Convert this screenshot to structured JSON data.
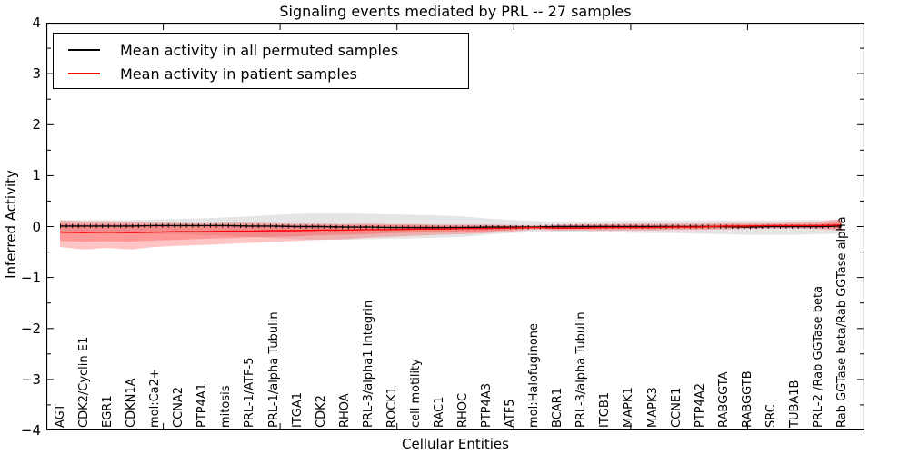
{
  "chart_data": {
    "type": "line",
    "title": "Signaling events mediated by PRL -- 27 samples",
    "xlabel": "Cellular Entities",
    "ylabel": "Inferred Activity",
    "ylim": [
      -4,
      4
    ],
    "xlim": [
      0,
      35
    ],
    "grid": false,
    "legend_position": "upper left",
    "categories": [
      "AGT",
      "CDK2/Cyclin E1",
      "EGR1",
      "CDKN1A",
      "mol:Ca2+",
      "CCNA2",
      "PTP4A1",
      "mitosis",
      "PRL-1/ATF-5",
      "PRL-1/alpha Tubulin",
      "ITGA1",
      "CDK2",
      "RHOA",
      "PRL-3/alpha1 Integrin",
      "ROCK1",
      "cell motility",
      "RAC1",
      "RHOC",
      "PTP4A3",
      "ATF5",
      "mol:Halofuginone",
      "BCAR1",
      "PRL-3/alpha Tubulin",
      "ITGB1",
      "MAPK1",
      "MAPK3",
      "CCNE1",
      "PTP4A2",
      "RABGGTA",
      "RABGGTB",
      "SRC",
      "TUBA1B",
      "PRL-2 /Rab GGTase beta",
      "Rab GGTase beta/Rab GGTase alpha"
    ],
    "series": [
      {
        "name": "Mean activity in all permuted samples",
        "color": "#000000",
        "tick_marks": true,
        "values": [
          0.01,
          0.01,
          0.01,
          0.01,
          0.02,
          0.02,
          0.02,
          0.02,
          0.01,
          0.01,
          0.0,
          0.0,
          -0.01,
          -0.01,
          -0.02,
          -0.02,
          -0.02,
          -0.02,
          -0.01,
          -0.01,
          -0.01,
          0.0,
          0.0,
          0.0,
          0.0,
          0.0,
          0.0,
          0.0,
          0.0,
          -0.01,
          0.0,
          0.0,
          0.0,
          0.01
        ]
      },
      {
        "name": "Mean activity in patient samples",
        "color": "#ff0000",
        "tick_marks": false,
        "values": [
          -0.11,
          -0.12,
          -0.11,
          -0.12,
          -0.11,
          -0.1,
          -0.1,
          -0.09,
          -0.09,
          -0.08,
          -0.08,
          -0.07,
          -0.07,
          -0.06,
          -0.06,
          -0.05,
          -0.05,
          -0.04,
          -0.04,
          -0.03,
          -0.02,
          -0.03,
          -0.03,
          -0.02,
          -0.02,
          -0.02,
          -0.01,
          -0.01,
          0.01,
          0.01,
          0.02,
          0.02,
          0.02,
          0.03
        ]
      }
    ],
    "bands": [
      {
        "name": "permuted-samples-band",
        "fill": "#999999",
        "opacity": 0.25,
        "upper": [
          0.13,
          0.13,
          0.13,
          0.13,
          0.14,
          0.15,
          0.16,
          0.18,
          0.2,
          0.23,
          0.25,
          0.26,
          0.26,
          0.25,
          0.24,
          0.23,
          0.22,
          0.2,
          0.16,
          0.13,
          0.11,
          0.1,
          0.1,
          0.11,
          0.12,
          0.12,
          0.12,
          0.12,
          0.12,
          0.12,
          0.12,
          0.13,
          0.13,
          0.13
        ],
        "lower": [
          -0.13,
          -0.13,
          -0.13,
          -0.13,
          -0.14,
          -0.15,
          -0.16,
          -0.18,
          -0.2,
          -0.23,
          -0.25,
          -0.26,
          -0.26,
          -0.25,
          -0.24,
          -0.23,
          -0.22,
          -0.2,
          -0.16,
          -0.13,
          -0.11,
          -0.1,
          -0.1,
          -0.11,
          -0.12,
          -0.13,
          -0.13,
          -0.14,
          -0.15,
          -0.16,
          -0.16,
          -0.16,
          -0.15,
          -0.14
        ]
      },
      {
        "name": "patient-samples-band-outer",
        "fill": "#ff3030",
        "opacity": 0.28,
        "upper": [
          0.12,
          0.1,
          0.1,
          0.09,
          0.08,
          0.08,
          0.07,
          0.08,
          0.08,
          0.07,
          0.06,
          0.06,
          0.05,
          0.06,
          0.05,
          0.05,
          0.04,
          0.04,
          0.04,
          0.03,
          0.02,
          0.04,
          0.05,
          0.05,
          0.06,
          0.06,
          0.06,
          0.06,
          0.07,
          0.07,
          0.07,
          0.08,
          0.09,
          0.15
        ],
        "lower": [
          -0.4,
          -0.45,
          -0.42,
          -0.45,
          -0.4,
          -0.38,
          -0.36,
          -0.34,
          -0.32,
          -0.3,
          -0.28,
          -0.26,
          -0.25,
          -0.22,
          -0.2,
          -0.18,
          -0.16,
          -0.15,
          -0.13,
          -0.1,
          -0.06,
          -0.08,
          -0.08,
          -0.08,
          -0.08,
          -0.08,
          -0.07,
          -0.07,
          -0.06,
          -0.05,
          -0.04,
          -0.04,
          -0.05,
          -0.08
        ]
      },
      {
        "name": "patient-samples-band-inner",
        "fill": "#ff3030",
        "opacity": 0.3,
        "upper": [
          0.06,
          0.05,
          0.05,
          0.05,
          0.04,
          0.04,
          0.04,
          0.04,
          0.04,
          0.04,
          0.03,
          0.03,
          0.03,
          0.03,
          0.03,
          0.03,
          0.02,
          0.02,
          0.02,
          0.02,
          0.01,
          0.02,
          0.03,
          0.03,
          0.03,
          0.03,
          0.03,
          0.03,
          0.04,
          0.04,
          0.04,
          0.05,
          0.05,
          0.09
        ],
        "lower": [
          -0.28,
          -0.3,
          -0.29,
          -0.3,
          -0.27,
          -0.26,
          -0.24,
          -0.23,
          -0.21,
          -0.2,
          -0.19,
          -0.17,
          -0.16,
          -0.15,
          -0.13,
          -0.12,
          -0.11,
          -0.1,
          -0.09,
          -0.07,
          -0.04,
          -0.05,
          -0.05,
          -0.05,
          -0.05,
          -0.05,
          -0.05,
          -0.04,
          -0.03,
          -0.03,
          -0.02,
          -0.02,
          -0.03,
          -0.04
        ]
      }
    ]
  },
  "axes": {
    "y_ticks": [
      {
        "value": 4,
        "label": "4"
      },
      {
        "value": 3,
        "label": "3"
      },
      {
        "value": 2,
        "label": "2"
      },
      {
        "value": 1,
        "label": "1"
      },
      {
        "value": 0,
        "label": "0"
      },
      {
        "value": -1,
        "label": "−1"
      },
      {
        "value": -2,
        "label": "−2"
      },
      {
        "value": -3,
        "label": "−3"
      },
      {
        "value": -4,
        "label": "−4"
      }
    ],
    "x_tick_values": [
      5,
      10,
      15,
      20,
      25,
      30,
      35
    ]
  }
}
